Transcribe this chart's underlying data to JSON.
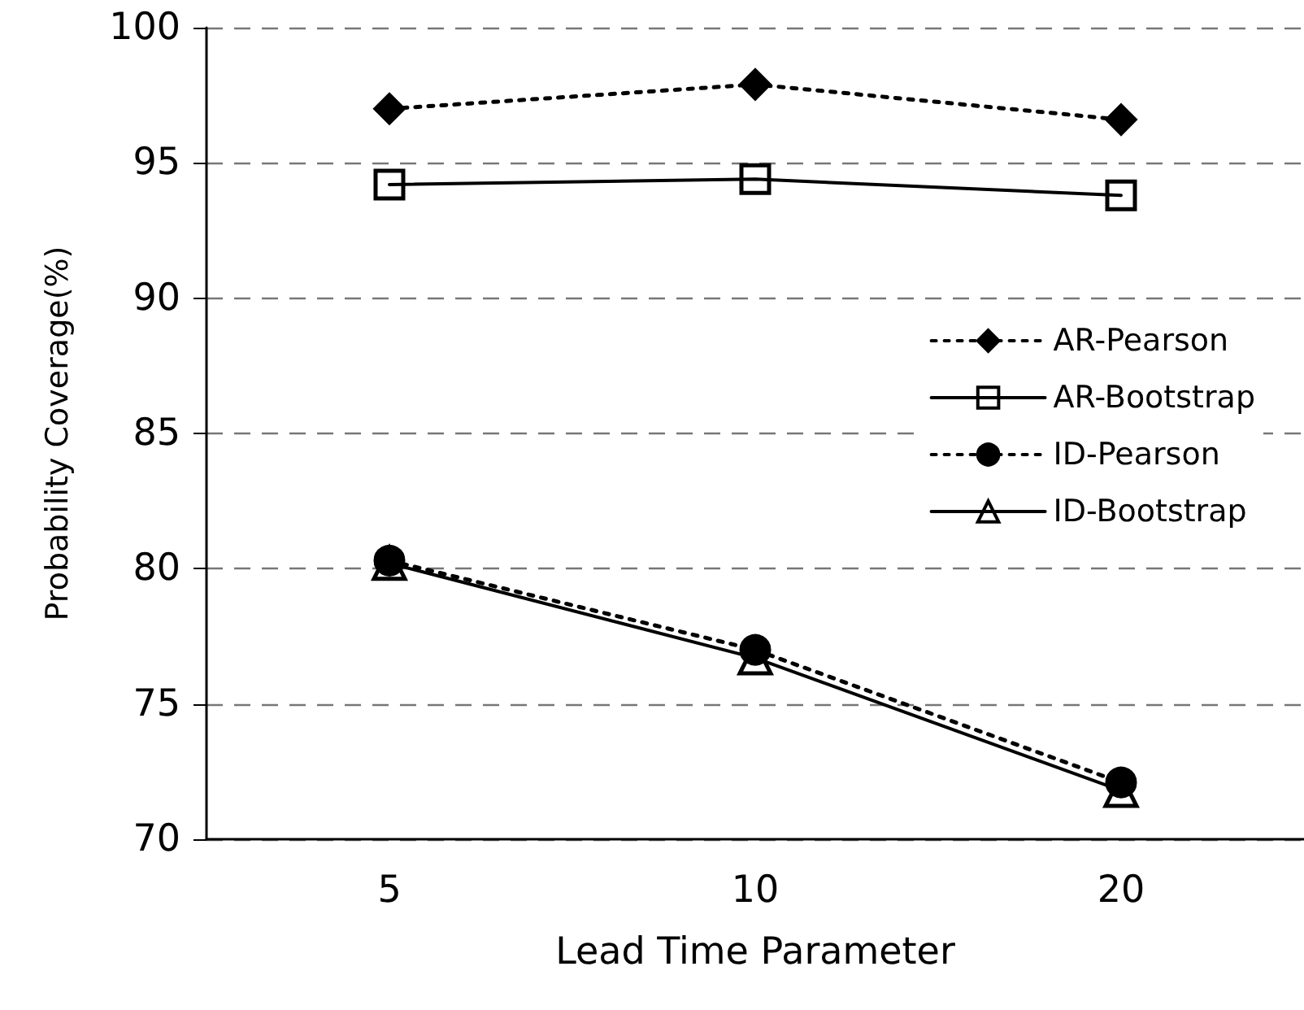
{
  "chart_data": {
    "type": "line",
    "xlabel": "Lead Time Parameter",
    "ylabel": "Probability Coverage(%)",
    "categories": [
      "5",
      "10",
      "20"
    ],
    "series": [
      {
        "name": "AR-Pearson",
        "color": "#000000",
        "values": [
          97.0,
          97.9,
          96.6
        ],
        "marker": "diamond",
        "line_style": "dotted"
      },
      {
        "name": "AR-Bootstrap",
        "color": "#000000",
        "values": [
          94.2,
          94.4,
          93.8
        ],
        "marker": "square",
        "line_style": "solid"
      },
      {
        "name": "ID-Pearson",
        "color": "#000000",
        "values": [
          80.3,
          77.0,
          72.1
        ],
        "marker": "circle",
        "line_style": "dotted"
      },
      {
        "name": "ID-Bootstrap",
        "color": "#000000",
        "values": [
          80.2,
          76.7,
          71.8
        ],
        "marker": "triangle",
        "line_style": "solid"
      }
    ],
    "ylim": [
      70,
      100
    ],
    "yticks": [
      70,
      75,
      80,
      85,
      90,
      95,
      100
    ],
    "grid": "y",
    "legend": "right"
  }
}
